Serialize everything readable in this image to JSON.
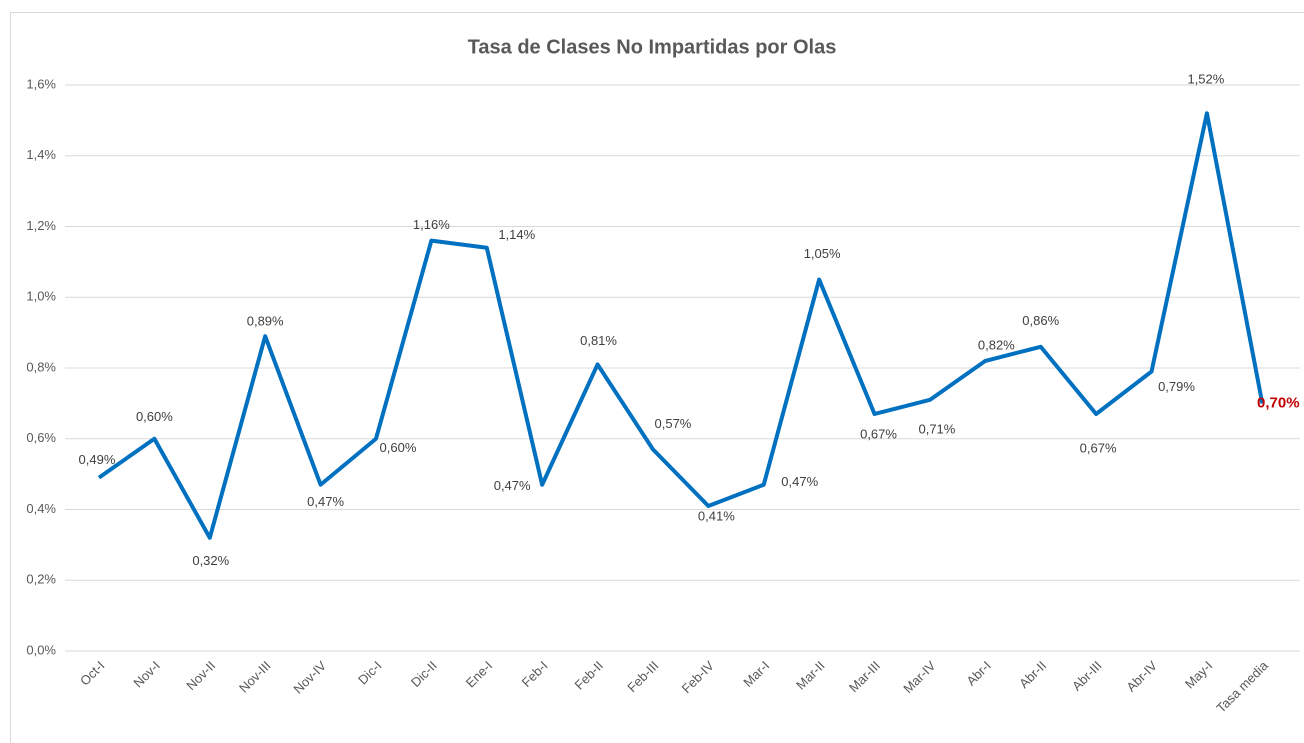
{
  "chart_data": {
    "type": "line",
    "title": "Tasa de Clases No Impartidas por Olas",
    "categories": [
      "Oct-I",
      "Nov-I",
      "Nov-II",
      "Nov-III",
      "Nov-IV",
      "Dic-I",
      "Dic-II",
      "Ene-I",
      "Feb-I",
      "Feb-II",
      "Feb-III",
      "Feb-IV",
      "Mar-I",
      "Mar-II",
      "Mar-III",
      "Mar-IV",
      "Abr-I",
      "Abr-II",
      "Abr-III",
      "Abr-IV",
      "May-I",
      "Tasa media"
    ],
    "series": [
      {
        "name": "Tasa de Clases No Impartidas",
        "color": "#0070c0",
        "values": [
          0.49,
          0.6,
          0.32,
          0.89,
          0.47,
          0.6,
          1.16,
          1.14,
          0.47,
          0.81,
          0.57,
          0.41,
          0.47,
          1.05,
          0.67,
          0.71,
          0.82,
          0.86,
          0.67,
          0.79,
          1.52,
          0.7
        ],
        "value_labels": [
          "0,49%",
          "0,60%",
          "0,32%",
          "0,89%",
          "0,47%",
          "0,60%",
          "1,16%",
          "1,14%",
          "0,47%",
          "0,81%",
          "0,57%",
          "0,41%",
          "0,47%",
          "1,05%",
          "0,67%",
          "0,71%",
          "0,82%",
          "0,86%",
          "0,67%",
          "0,79%",
          "1,52%",
          "0,70%"
        ]
      }
    ],
    "highlight_label_color": "#c00000",
    "ylim": [
      0,
      1.6
    ],
    "yticks": [
      {
        "value": 0,
        "label": "0,0%"
      },
      {
        "value": 0.2,
        "label": "0,2%"
      },
      {
        "value": 0.4,
        "label": "0,4%"
      },
      {
        "value": 0.6,
        "label": "0,6%"
      },
      {
        "value": 0.8,
        "label": "0,8%"
      },
      {
        "value": 1.0,
        "label": "1,0%"
      },
      {
        "value": 1.2,
        "label": "1,2%"
      },
      {
        "value": 1.4,
        "label": "1,4%"
      },
      {
        "value": 1.6,
        "label": "1,6%"
      }
    ],
    "grid": true
  }
}
